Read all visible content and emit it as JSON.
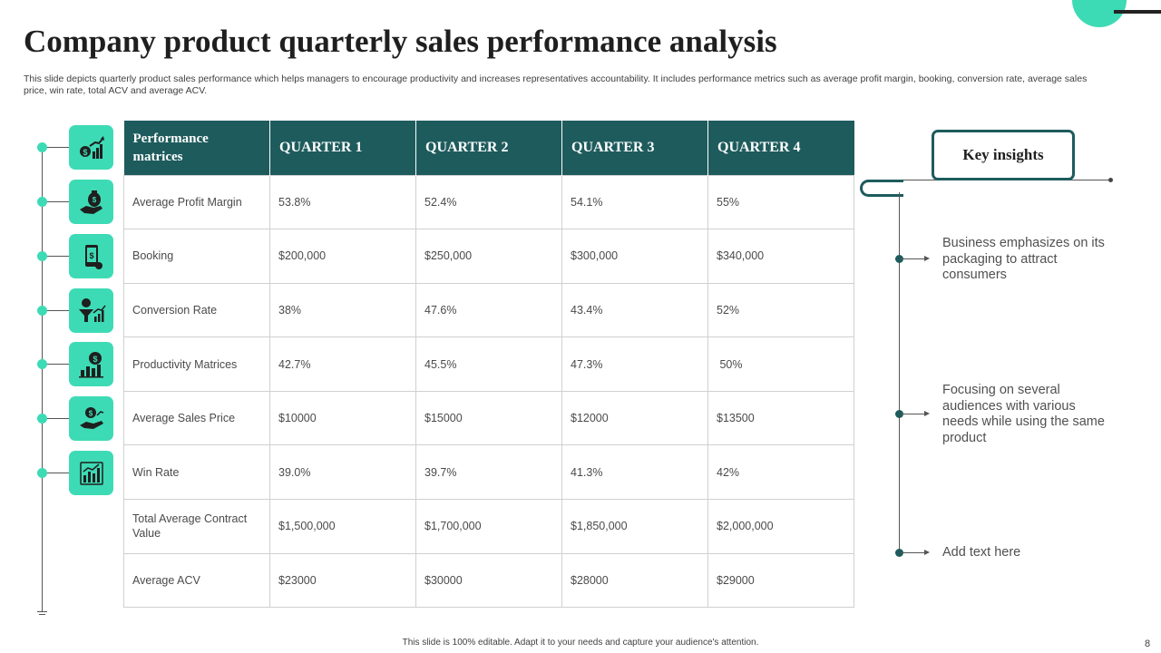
{
  "slide": {
    "title": "Company product quarterly sales performance analysis",
    "subtitle": "This slide depicts quarterly product sales performance which helps managers to encourage productivity and increases representatives accountability. It includes performance metrics such as average profit margin, booking, conversion rate, average sales price, win rate, total ACV and average ACV.",
    "footer": "This slide is 100% editable. Adapt it to your needs and capture your audience's attention.",
    "page_number": "8"
  },
  "colors": {
    "accent": "#3ddbb5",
    "header": "#1e5b5d"
  },
  "timeline": {
    "icons": [
      "money-growth-icon",
      "money-bag-hand-icon",
      "mobile-payment-icon",
      "conversion-funnel-icon",
      "productivity-chart-icon",
      "sales-price-hand-icon",
      "win-rate-chart-icon"
    ]
  },
  "table": {
    "headers": [
      "Performance matrices",
      "QUARTER 1",
      "QUARTER 2",
      "QUARTER 3",
      "QUARTER 4"
    ],
    "rows": [
      [
        "Average  Profit Margin",
        "53.8%",
        "52.4%",
        "54.1%",
        "55%"
      ],
      [
        "Booking",
        "$200,000",
        "$250,000",
        "$300,000",
        "$340,000"
      ],
      [
        "Conversion  Rate",
        "38%",
        "47.6%",
        "43.4%",
        "52%"
      ],
      [
        "Productivity Matrices",
        "42.7%",
        "45.5%",
        "47.3%",
        " 50%"
      ],
      [
        "Average  Sales Price",
        "$10000",
        "$15000",
        "$12000",
        "$13500"
      ],
      [
        "Win Rate",
        "39.0%",
        "39.7%",
        "41.3%",
        "42%"
      ],
      [
        "Total Average  Contract Value",
        "$1,500,000",
        "$1,700,000",
        "$1,850,000",
        "$2,000,000"
      ],
      [
        "Average  ACV",
        "$23000",
        "$30000",
        "$28000",
        "$29000"
      ]
    ]
  },
  "key_insights": {
    "title": "Key insights",
    "items": [
      "Business emphasizes on its packaging to attract consumers",
      "Focusing on several audiences with various needs while using the same product",
      "Add text here"
    ]
  }
}
